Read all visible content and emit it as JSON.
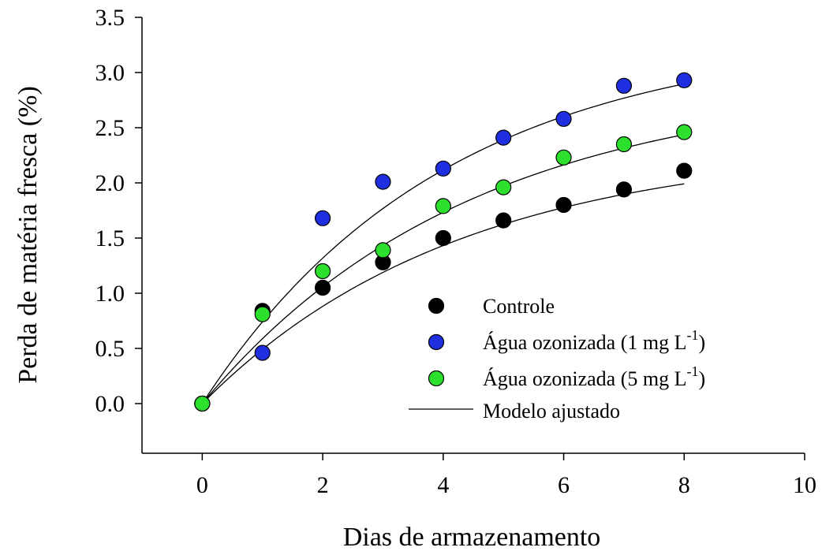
{
  "chart_data": {
    "type": "scatter",
    "title": "",
    "xlabel": "Dias de armazenamento",
    "ylabel": "Perda de matéria fresca (%)",
    "xlim": [
      -1,
      10
    ],
    "ylim": [
      -0.45,
      3.5
    ],
    "xticks": [
      0,
      2,
      4,
      6,
      8,
      10
    ],
    "xtick_labels": [
      "0",
      "2",
      "4",
      "6",
      "8",
      "10"
    ],
    "yticks": [
      0.0,
      0.5,
      1.0,
      1.5,
      2.0,
      2.5,
      3.0,
      3.5
    ],
    "ytick_labels": [
      "0.0",
      "0.5",
      "1.0",
      "1.5",
      "2.0",
      "2.5",
      "3.0",
      "3.5"
    ],
    "grid": false,
    "legend_position": "bottom-right",
    "x": [
      0,
      1,
      2,
      3,
      4,
      5,
      6,
      7,
      8
    ],
    "series": [
      {
        "name": "Controle",
        "color": "#000000",
        "values": [
          0.0,
          0.84,
          1.05,
          1.28,
          1.5,
          1.66,
          1.8,
          1.94,
          2.11
        ]
      },
      {
        "name": "Água ozonizada (1 mg L",
        "name_sup": "-1",
        "name_end": ")",
        "color": "#1f2fe0",
        "values": [
          0.0,
          0.46,
          1.68,
          2.01,
          2.13,
          2.41,
          2.58,
          2.88,
          2.93
        ]
      },
      {
        "name": "Água ozonizada (5 mg L",
        "name_sup": "-1",
        "name_end": ")",
        "color": "#2ee02e",
        "values": [
          0.0,
          0.81,
          1.2,
          1.39,
          1.79,
          1.96,
          2.23,
          2.35,
          2.46
        ]
      }
    ],
    "fit_label": "Modelo ajustado",
    "fits": [
      {
        "a": 2.35,
        "k": 0.235
      },
      {
        "a": 3.35,
        "k": 0.25
      },
      {
        "a": 2.92,
        "k": 0.225
      }
    ]
  }
}
